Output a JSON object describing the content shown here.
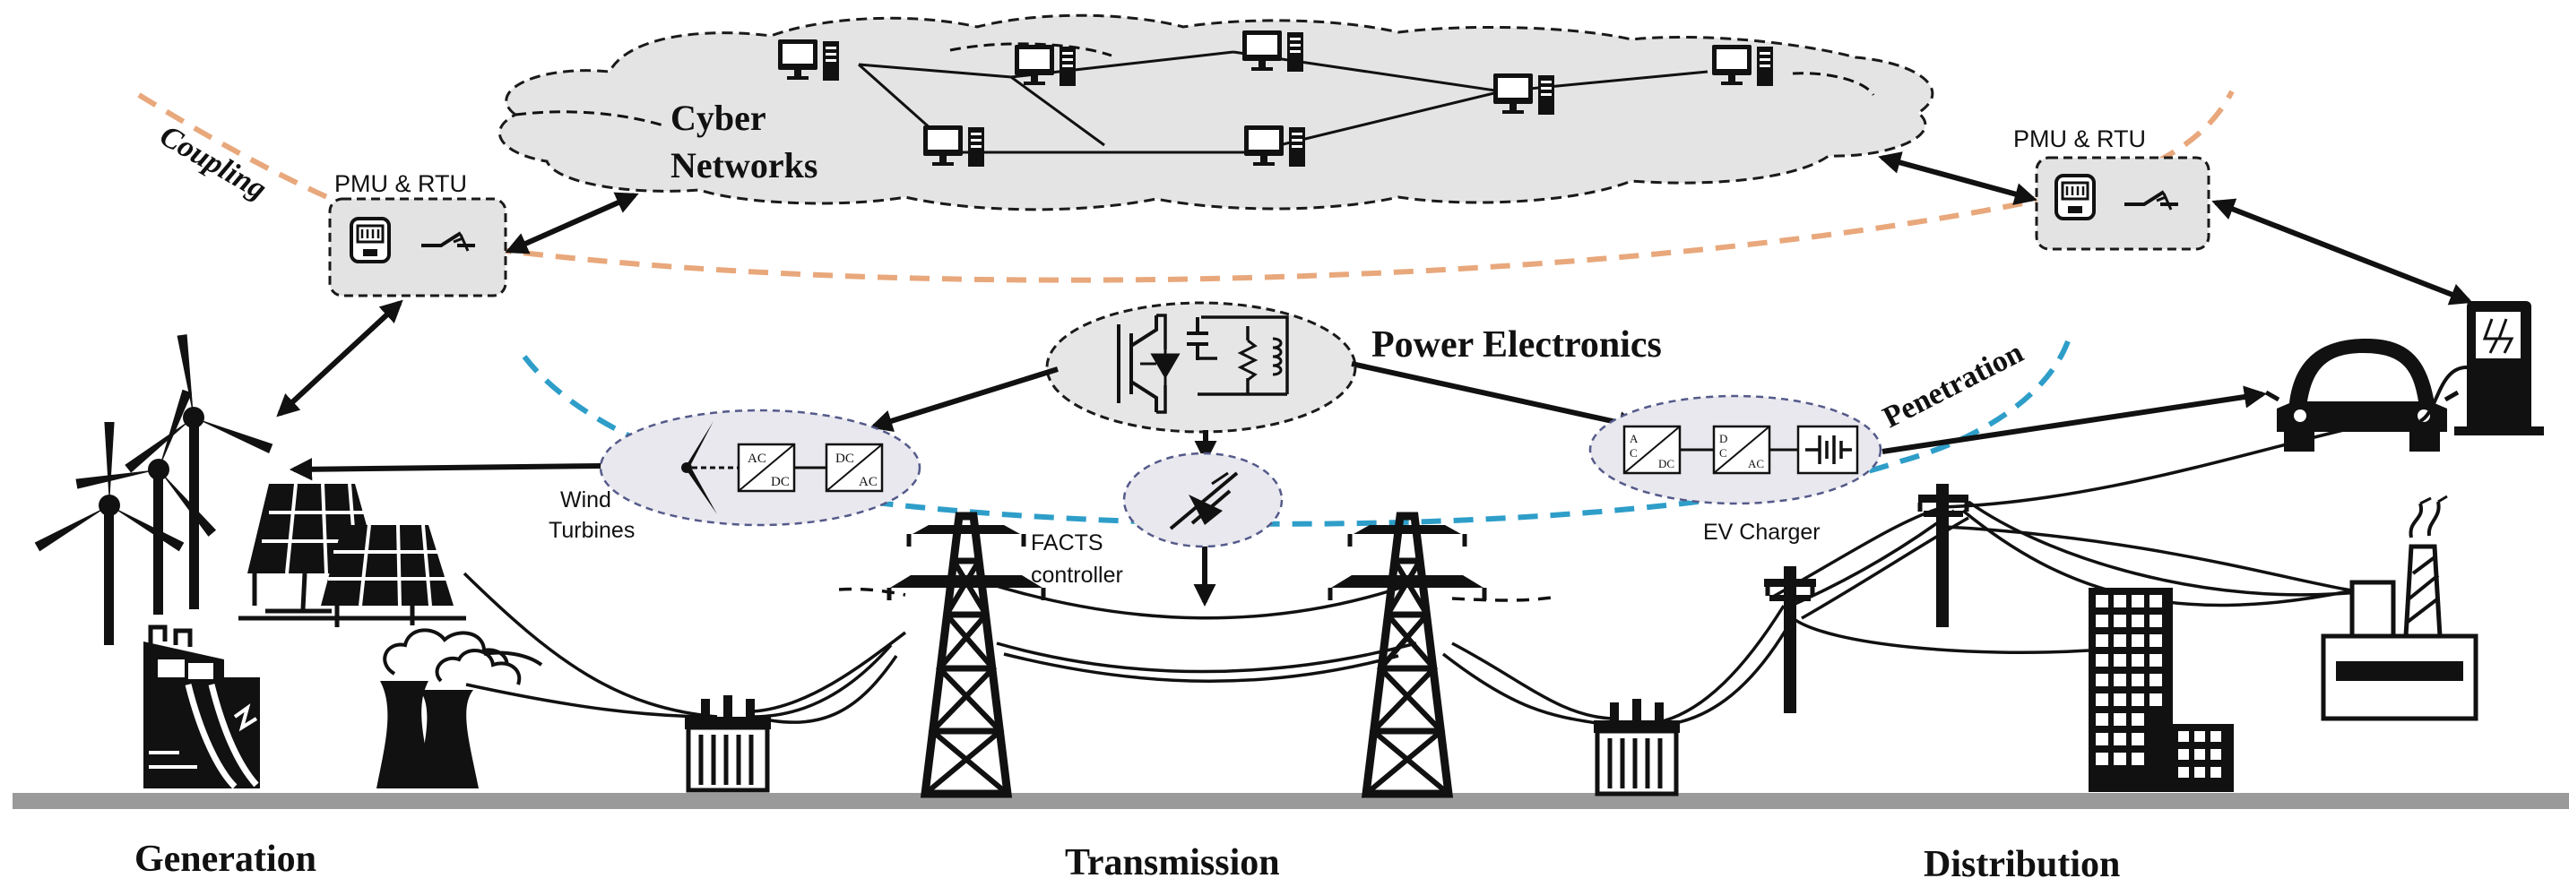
{
  "labels": {
    "coupling": "Coupling",
    "cyber_networks_line1": "Cyber",
    "cyber_networks_line2": "Networks",
    "pmu_rtu_left": "PMU & RTU",
    "pmu_rtu_right": "PMU & RTU",
    "power_electronics": "Power Electronics",
    "penetration": "Penetration",
    "wind_turbines_line1": "Wind",
    "wind_turbines_line2": "Turbines",
    "facts_line1": "FACTS",
    "facts_line2": "controller",
    "ev_charger": "EV Charger",
    "generation": "Generation",
    "transmission": "Transmission",
    "distribution": "Distribution"
  },
  "converters": {
    "wind_ac_dc_top": "AC",
    "wind_ac_dc_bottom": "DC",
    "wind_dc_ac_top": "DC",
    "wind_dc_ac_bottom": "AC",
    "ev_ac_dc_top": "A",
    "ev_ac_dc_mid": "C",
    "ev_ac_dc_bottom": "DC",
    "ev_dc_ac_top": "D",
    "ev_dc_ac_mid": "C",
    "ev_dc_ac_bottom": "AC"
  },
  "icons": [
    "computer-icon",
    "meter-icon",
    "switch-icon",
    "wind-turbine-icon",
    "solar-panel-icon",
    "hydro-plant-icon",
    "cooling-tower-icon",
    "transformer-icon",
    "transmission-tower-icon",
    "utility-pole-icon",
    "building-icon",
    "factory-icon",
    "electric-car-icon",
    "charging-station-icon",
    "igbt-icon",
    "thyristor-icon",
    "battery-icon"
  ],
  "colors": {
    "coupling": "#e8a87c",
    "penetration": "#2e9ec9",
    "cloud_fill": "#e4e4e4",
    "ground": "#9a9a9a"
  }
}
